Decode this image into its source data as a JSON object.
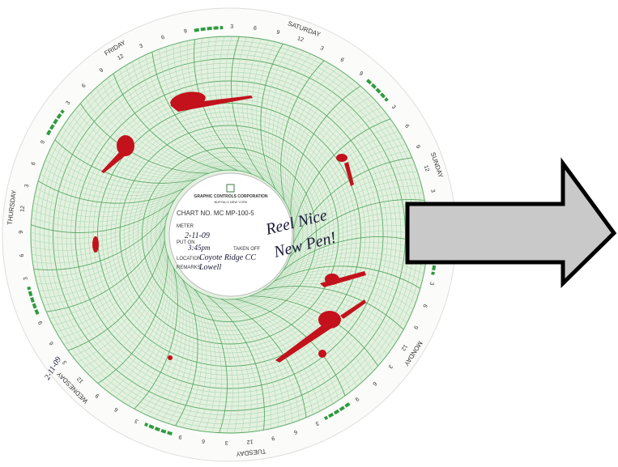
{
  "chart_paper": {
    "days": [
      "SATURDAY",
      "SUNDAY",
      "MONDAY",
      "TUESDAY",
      "WEDNESDAY",
      "THURSDAY",
      "FRIDAY"
    ],
    "hour_labels": [
      "3",
      "6",
      "9",
      "12",
      "3",
      "6",
      "9"
    ],
    "center_label": {
      "company": "GRAPHIC CONTROLS CORPORATION",
      "city": "BUFFALO NEW YORK",
      "chart_no": "CHART NO. MC MP-100-5",
      "meter": "METER",
      "put_on": "PUT ON",
      "taken_off": "TAKEN OFF",
      "location": "LOCATION",
      "remarks": "REMARKS"
    },
    "handwriting": {
      "date": "2-11-09",
      "time": "3:45pm",
      "location": "Coyote Ridge CC",
      "remarks": "Lowell",
      "note_line1": "Reel Nice",
      "note_line2": "New Pen!",
      "margin_date": "2-11-09"
    }
  }
}
